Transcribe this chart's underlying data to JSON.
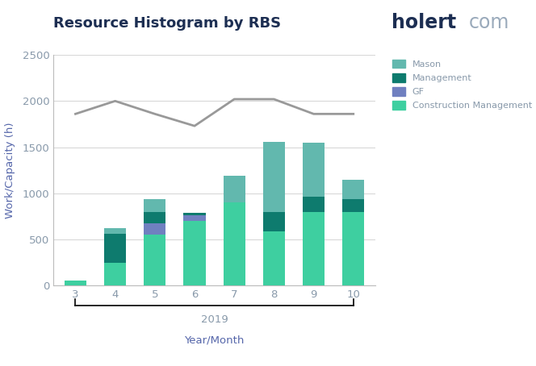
{
  "title": "Resource Histogram by RBS",
  "xlabel": "Year/Month",
  "ylabel": "Work/Capacity (h)",
  "year_label": "2019",
  "months": [
    3,
    4,
    5,
    6,
    7,
    8,
    9,
    10
  ],
  "construction_management": [
    50,
    250,
    550,
    700,
    900,
    590,
    800,
    800
  ],
  "gf": [
    0,
    0,
    120,
    60,
    0,
    0,
    0,
    0
  ],
  "management": [
    0,
    310,
    130,
    30,
    0,
    210,
    165,
    135
  ],
  "mason": [
    0,
    65,
    135,
    0,
    290,
    755,
    580,
    215
  ],
  "capacity_line": [
    1860,
    2000,
    1860,
    1730,
    2020,
    2020,
    1860,
    1860
  ],
  "colors": {
    "construction_management": "#3ecfa0",
    "management": "#0e7b6e",
    "gf": "#7080c0",
    "mason": "#62b8ae"
  },
  "capacity_line_color": "#999999",
  "ylim": [
    0,
    2500
  ],
  "yticks": [
    0,
    500,
    1000,
    1500,
    2000,
    2500
  ],
  "background_color": "#ffffff",
  "title_color": "#1c2e52",
  "logo_holert_color": "#1c2e52",
  "logo_com_color": "#9aaabb",
  "axis_label_color": "#5566aa",
  "tick_color": "#8899aa",
  "grid_color": "#d8d8d8",
  "spine_color": "#bbbbbb"
}
